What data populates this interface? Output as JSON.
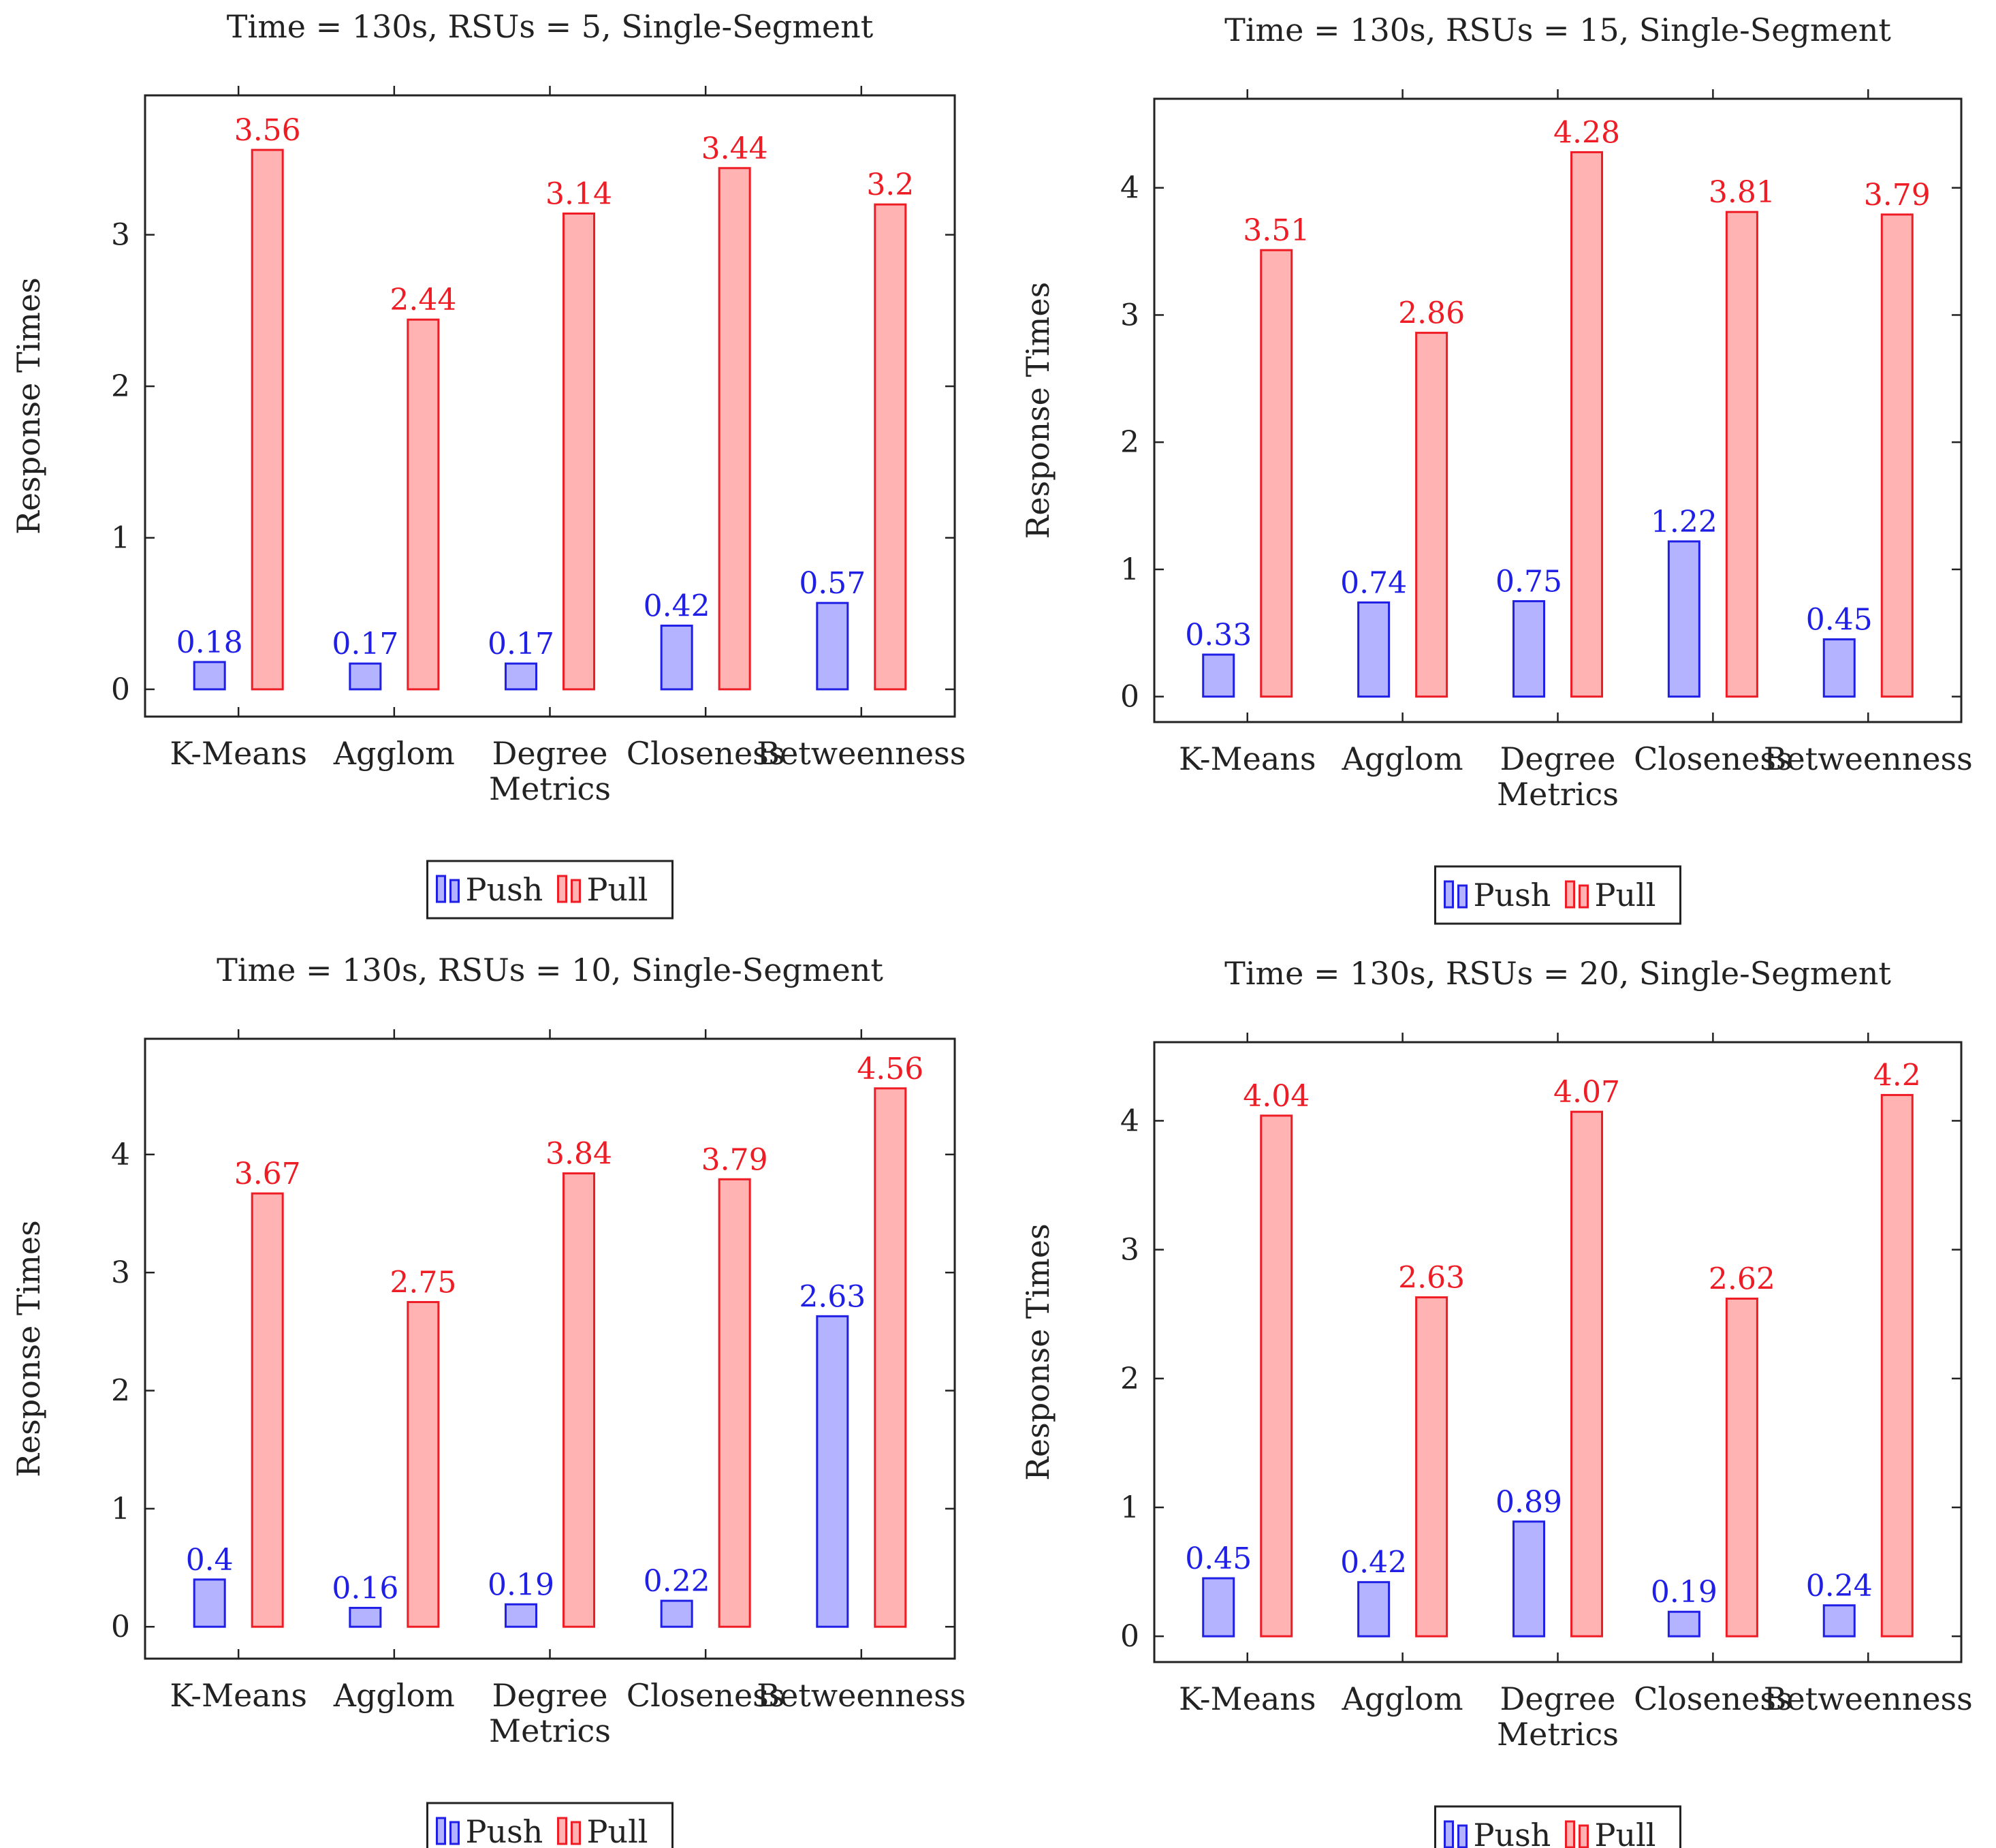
{
  "colors": {
    "push_stroke": "#1f1fe6",
    "push_fill": "#b3b3ff",
    "pull_stroke": "#ee1c24",
    "pull_fill": "#ffb3b3",
    "axis": "#222222"
  },
  "chart_data": [
    {
      "type": "bar",
      "title": "Time = 130s, RSUs = 5, Single-Segment",
      "ylabel": "Response Times",
      "xlabel": "",
      "categories": [
        [
          "K-Means"
        ],
        [
          "Agglom"
        ],
        [
          "Degree",
          "Metrics"
        ],
        [
          "Closeness"
        ],
        [
          "Betweenness"
        ]
      ],
      "yticks": [
        0,
        1,
        2,
        3
      ],
      "ylim": [
        -0.18,
        3.92
      ],
      "grid": false,
      "legend": "bottom-center",
      "series": [
        {
          "name": "Push",
          "values": [
            0.18,
            0.17,
            0.17,
            0.42,
            0.57
          ],
          "labels": [
            "0.18",
            "0.17",
            "0.17",
            "0.42",
            "0.57"
          ]
        },
        {
          "name": "Pull",
          "values": [
            3.56,
            2.44,
            3.14,
            3.44,
            3.2
          ],
          "labels": [
            "3.56",
            "2.44",
            "3.14",
            "3.44",
            "3.2"
          ]
        }
      ]
    },
    {
      "type": "bar",
      "title": "Time = 130s, RSUs = 15, Single-Segment",
      "ylabel": "Response Times",
      "xlabel": "",
      "categories": [
        [
          "K-Means"
        ],
        [
          "Agglom"
        ],
        [
          "Degree",
          "Metrics"
        ],
        [
          "Closeness"
        ],
        [
          "Betweenness"
        ]
      ],
      "yticks": [
        0,
        1,
        2,
        3,
        4
      ],
      "ylim": [
        -0.2,
        4.7
      ],
      "grid": false,
      "legend": "bottom-center",
      "series": [
        {
          "name": "Push",
          "values": [
            0.33,
            0.74,
            0.75,
            1.22,
            0.45
          ],
          "labels": [
            "0.33",
            "0.74",
            "0.75",
            "1.22",
            "0.45"
          ]
        },
        {
          "name": "Pull",
          "values": [
            3.51,
            2.86,
            4.28,
            3.81,
            3.79
          ],
          "labels": [
            "3.51",
            "2.86",
            "4.28",
            "3.81",
            "3.79"
          ]
        }
      ]
    },
    {
      "type": "bar",
      "title": "Time = 130s, RSUs = 10, Single-Segment",
      "ylabel": "Response Times",
      "xlabel": "",
      "categories": [
        [
          "K-Means"
        ],
        [
          "Agglom"
        ],
        [
          "Degree",
          "Metrics"
        ],
        [
          "Closeness"
        ],
        [
          "Betweenness"
        ]
      ],
      "yticks": [
        0,
        1,
        2,
        3,
        4
      ],
      "ylim": [
        -0.27,
        4.98
      ],
      "grid": false,
      "legend": "bottom-center",
      "series": [
        {
          "name": "Push",
          "values": [
            0.4,
            0.16,
            0.19,
            0.22,
            2.63
          ],
          "labels": [
            "0.4",
            "0.16",
            "0.19",
            "0.22",
            "2.63"
          ]
        },
        {
          "name": "Pull",
          "values": [
            3.67,
            2.75,
            3.84,
            3.79,
            4.56
          ],
          "labels": [
            "3.67",
            "2.75",
            "3.84",
            "3.79",
            "4.56"
          ]
        }
      ]
    },
    {
      "type": "bar",
      "title": "Time = 130s, RSUs = 20, Single-Segment",
      "ylabel": "Response Times",
      "xlabel": "",
      "categories": [
        [
          "K-Means"
        ],
        [
          "Agglom"
        ],
        [
          "Degree",
          "Metrics"
        ],
        [
          "Closeness"
        ],
        [
          "Betweenness"
        ]
      ],
      "yticks": [
        0,
        1,
        2,
        3,
        4
      ],
      "ylim": [
        -0.2,
        4.61
      ],
      "grid": false,
      "legend": "bottom-center",
      "series": [
        {
          "name": "Push",
          "values": [
            0.45,
            0.42,
            0.89,
            0.19,
            0.24
          ],
          "labels": [
            "0.45",
            "0.42",
            "0.89",
            "0.19",
            "0.24"
          ]
        },
        {
          "name": "Pull",
          "values": [
            4.04,
            2.63,
            4.07,
            2.62,
            4.2
          ],
          "labels": [
            "4.04",
            "2.63",
            "4.07",
            "2.62",
            "4.2"
          ]
        }
      ]
    }
  ]
}
